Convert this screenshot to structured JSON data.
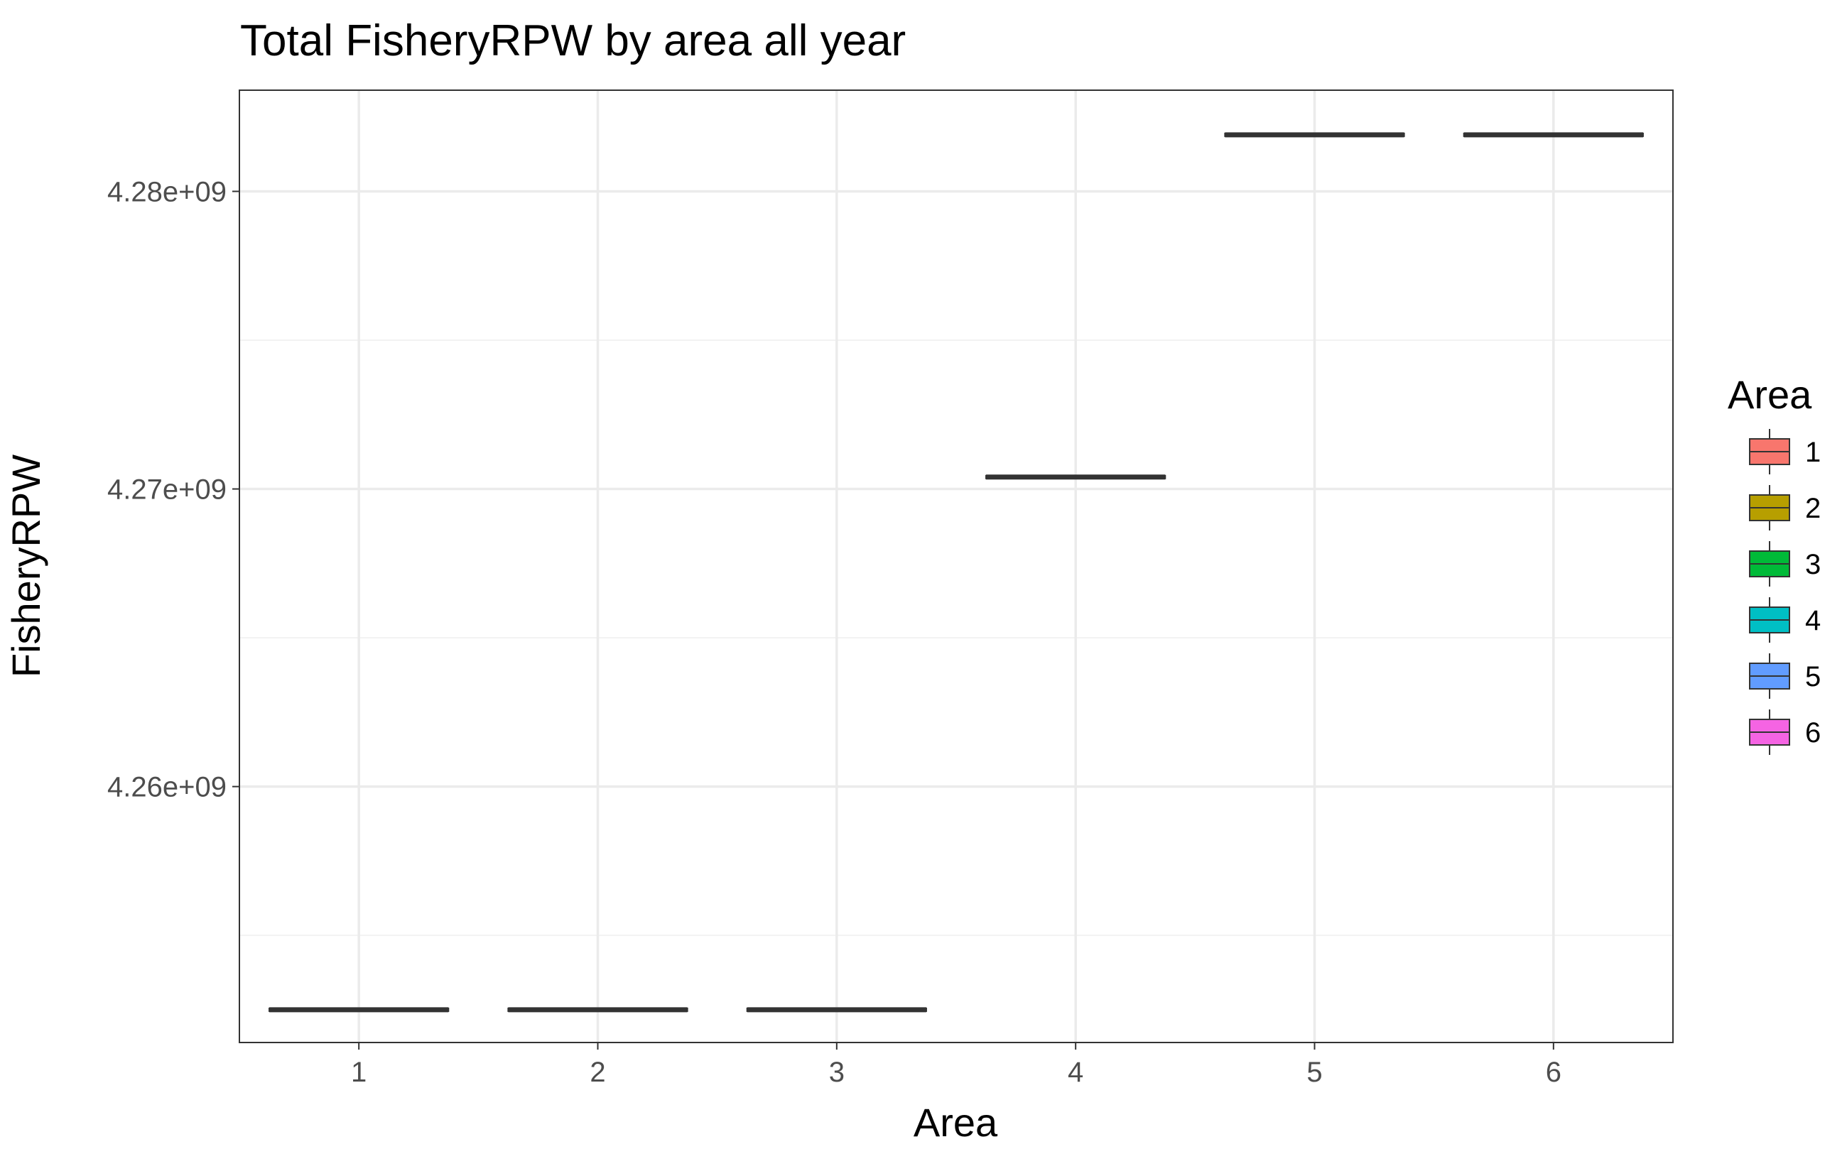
{
  "chart_data": {
    "type": "box",
    "title": "Total FisheryRPW by area all year",
    "xlabel": "Area",
    "ylabel": "FisheryRPW",
    "categories": [
      "1",
      "2",
      "3",
      "4",
      "5",
      "6"
    ],
    "values": [
      4252500000,
      4252500000,
      4252500000,
      4270400000,
      4281900000,
      4281900000
    ],
    "ylim": [
      4251400000,
      4283400000
    ],
    "yticks": [
      4260000000,
      4270000000,
      4280000000
    ],
    "ytick_labels": [
      "4.26e+09",
      "4.27e+09",
      "4.28e+09"
    ],
    "yminor": [
      4255000000,
      4265000000,
      4275000000
    ],
    "grid": true,
    "legend": {
      "title": "Area",
      "position": "right",
      "entries": [
        {
          "label": "1",
          "color": "#F8766D"
        },
        {
          "label": "2",
          "color": "#B79F00"
        },
        {
          "label": "3",
          "color": "#00BA38"
        },
        {
          "label": "4",
          "color": "#00BFC4"
        },
        {
          "label": "5",
          "color": "#619CFF"
        },
        {
          "label": "6",
          "color": "#F564E3"
        }
      ]
    }
  }
}
